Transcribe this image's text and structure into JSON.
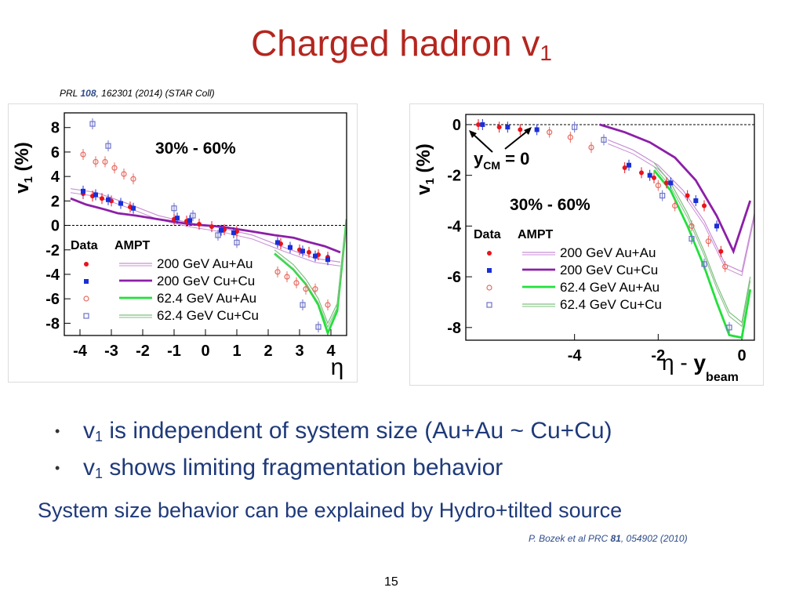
{
  "slide": {
    "title_main": "Charged hadron v",
    "title_sub": "1",
    "ref_top": {
      "pre": "PRL ",
      "vol": "108",
      "post": ", 162301 (2014) (STAR Coll)"
    },
    "bullets": [
      {
        "mark": "•",
        "v": "v",
        "sub": "1",
        "text": " is independent of system size (Au+Au ~ Cu+Cu)"
      },
      {
        "mark": "•",
        "v": "v",
        "sub": "1",
        "text": " shows limiting fragmentation behavior"
      }
    ],
    "system_line": "System size behavior can be explained by Hydro+tilted source",
    "ref_bottom": {
      "pre": "P. Bozek et al PRC ",
      "vol": "81",
      "post": ", 054902 (2010)"
    },
    "page_number": "15"
  },
  "colors": {
    "title": "#b4261f",
    "text": "#1f3a7a",
    "au200": "#e8141c",
    "cu200": "#1a2fd6",
    "au62": "#e86a60",
    "cu62": "#6d72c9",
    "ampt_au200": "#c98fd6",
    "ampt_cu200": "#8c1fa8",
    "ampt_au62": "#22e03a",
    "ampt_cu62": "#7fbf7f"
  },
  "chart_data": [
    {
      "type": "scatter",
      "panel_label": "30% - 60%",
      "xlabel": "η",
      "ylabel": "v1 (%)",
      "xlim": [
        -4.5,
        4.5
      ],
      "ylim": [
        -9,
        9.2
      ],
      "xticks": [
        -4,
        -3,
        -2,
        -1,
        0,
        1,
        2,
        3,
        4
      ],
      "yticks": [
        8,
        6,
        4,
        2,
        0,
        -2,
        -4,
        -6,
        -8
      ],
      "legend_header": [
        "Data",
        "AMPT"
      ],
      "legend": [
        "200 GeV Au+Au",
        "200 GeV Cu+Cu",
        "62.4 GeV Au+Au",
        "62.4 GeV Cu+Cu"
      ],
      "series": [
        {
          "name": "200 GeV Au+Au",
          "kind": "data",
          "marker": "dot",
          "x": [
            -3.9,
            -3.6,
            -3.3,
            -3.0,
            -2.7,
            -2.4,
            -1.0,
            -0.6,
            -0.2,
            0.2,
            0.6,
            1.0,
            2.4,
            2.7,
            3.0,
            3.3,
            3.6,
            3.9
          ],
          "y": [
            2.6,
            2.4,
            2.2,
            2.0,
            1.8,
            1.5,
            0.5,
            0.35,
            0.1,
            -0.1,
            -0.35,
            -0.5,
            -1.5,
            -1.8,
            -2.0,
            -2.2,
            -2.4,
            -2.6
          ]
        },
        {
          "name": "200 GeV Cu+Cu",
          "kind": "data",
          "marker": "square",
          "x": [
            -3.9,
            -3.5,
            -3.1,
            -2.7,
            -2.3,
            -0.9,
            -0.5,
            0.5,
            0.9,
            2.3,
            2.7,
            3.1,
            3.5,
            3.9
          ],
          "y": [
            2.8,
            2.5,
            2.1,
            1.8,
            1.4,
            0.6,
            0.4,
            -0.4,
            -0.6,
            -1.4,
            -1.8,
            -2.1,
            -2.5,
            -2.8
          ]
        },
        {
          "name": "62.4 GeV Au+Au",
          "kind": "data",
          "marker": "circle",
          "x": [
            -3.9,
            -3.5,
            -3.2,
            -2.9,
            -2.6,
            -2.3,
            2.3,
            2.6,
            2.9,
            3.2,
            3.5,
            3.9
          ],
          "y": [
            5.8,
            5.2,
            5.2,
            4.7,
            4.2,
            3.8,
            -3.8,
            -4.2,
            -4.7,
            -5.2,
            -5.2,
            -6.5
          ]
        },
        {
          "name": "62.4 GeV Cu+Cu",
          "kind": "data",
          "marker": "open-square",
          "x": [
            -3.6,
            -3.1,
            -1.0,
            -0.4,
            0.4,
            1.0,
            3.1,
            3.6
          ],
          "y": [
            8.3,
            6.5,
            1.4,
            0.8,
            -0.8,
            -1.4,
            -6.5,
            -8.3
          ]
        },
        {
          "name": "200 GeV Au+Au",
          "kind": "ampt",
          "x": [
            -4.3,
            -3.5,
            -2.5,
            -1.5,
            -0.5,
            0.5,
            1.5,
            2.5,
            3.5,
            4.3
          ],
          "y": [
            3.0,
            2.7,
            1.8,
            0.8,
            0.2,
            -0.2,
            -0.8,
            -1.8,
            -2.7,
            -3.0
          ]
        },
        {
          "name": "200 GeV Cu+Cu",
          "kind": "ampt",
          "x": [
            -4.3,
            -3.8,
            -3.2,
            -2.8,
            -2.2,
            -1.5,
            -0.5,
            0.5,
            1.5,
            2.2,
            2.8,
            3.2,
            3.8,
            4.3
          ],
          "y": [
            2.2,
            1.7,
            1.3,
            1.0,
            0.8,
            0.5,
            0.1,
            -0.1,
            -0.5,
            -0.8,
            -1.0,
            -1.3,
            -1.7,
            -2.2
          ]
        },
        {
          "name": "62.4 GeV Au+Au",
          "kind": "ampt",
          "x": [
            2.2,
            2.8,
            3.2,
            3.6,
            3.9,
            4.2,
            4.5
          ],
          "y": [
            -2.3,
            -3.6,
            -4.8,
            -6.5,
            -8.8,
            -7.0,
            0.5
          ]
        },
        {
          "name": "62.4 GeV Cu+Cu",
          "kind": "ampt",
          "x": [
            2.2,
            2.8,
            3.2,
            3.6,
            3.9,
            4.2,
            4.5
          ],
          "y": [
            -2.0,
            -3.2,
            -4.4,
            -6.0,
            -8.0,
            -6.4,
            0.5
          ]
        }
      ]
    },
    {
      "type": "scatter",
      "panel_label": "30% - 60%",
      "annotation": "y_CM = 0",
      "xlabel": "η - y_beam",
      "ylabel": "v1 (%)",
      "xlim": [
        -6.6,
        0.3
      ],
      "ylim": [
        -8.5,
        0.4
      ],
      "xticks": [
        -4,
        -2,
        0
      ],
      "yticks": [
        0,
        -2,
        -4,
        -6,
        -8
      ],
      "legend_header": [
        "Data",
        "AMPT"
      ],
      "legend": [
        "200 GeV Au+Au",
        "200 GeV Cu+Cu",
        "62.4 GeV Au+Au",
        "62.4 GeV Cu+Cu"
      ],
      "series": [
        {
          "name": "200 GeV Au+Au",
          "kind": "data",
          "marker": "dot",
          "x": [
            -6.3,
            -5.8,
            -5.3,
            -2.8,
            -2.4,
            -2.1,
            -1.8,
            -1.3,
            -0.9,
            -0.5
          ],
          "y": [
            0.0,
            -0.1,
            -0.2,
            -1.7,
            -1.9,
            -2.1,
            -2.3,
            -2.8,
            -3.2,
            -5.0
          ]
        },
        {
          "name": "200 GeV Cu+Cu",
          "kind": "data",
          "marker": "square",
          "x": [
            -6.2,
            -5.6,
            -4.9,
            -2.7,
            -2.2,
            -1.7,
            -1.1,
            -0.6
          ],
          "y": [
            0.0,
            -0.1,
            -0.2,
            -1.6,
            -2.0,
            -2.3,
            -3.0,
            -4.0
          ]
        },
        {
          "name": "62.4 GeV Au+Au",
          "kind": "data",
          "marker": "circle",
          "x": [
            -4.6,
            -4.1,
            -3.6,
            -2.0,
            -1.6,
            -1.2,
            -0.8,
            -0.4
          ],
          "y": [
            -0.3,
            -0.5,
            -0.9,
            -2.4,
            -3.2,
            -4.0,
            -4.6,
            -5.6
          ]
        },
        {
          "name": "62.4 GeV Cu+Cu",
          "kind": "data",
          "marker": "open-square",
          "x": [
            -4.0,
            -3.3,
            -1.9,
            -1.2,
            -0.9,
            -0.3
          ],
          "y": [
            -0.1,
            -0.6,
            -2.8,
            -4.5,
            -5.5,
            -8.0
          ]
        },
        {
          "name": "200 GeV Au+Au",
          "kind": "ampt",
          "x": [
            -3.2,
            -2.6,
            -2.0,
            -1.4,
            -0.9,
            -0.4,
            0.0,
            0.3
          ],
          "y": [
            -0.6,
            -1.0,
            -1.6,
            -2.6,
            -3.8,
            -5.5,
            -5.8,
            -3.5
          ]
        },
        {
          "name": "200 GeV Cu+Cu",
          "kind": "ampt",
          "x": [
            -3.4,
            -2.8,
            -2.2,
            -1.6,
            -1.1,
            -0.6,
            -0.2,
            0.2
          ],
          "y": [
            0.0,
            -0.3,
            -0.7,
            -1.3,
            -2.2,
            -3.6,
            -5.0,
            -3.0
          ]
        },
        {
          "name": "62.4 GeV Au+Au",
          "kind": "ampt",
          "x": [
            -2.1,
            -1.7,
            -1.3,
            -0.9,
            -0.6,
            -0.3,
            0.0,
            0.2
          ],
          "y": [
            -1.8,
            -2.6,
            -4.0,
            -5.6,
            -7.0,
            -8.3,
            -8.4,
            -6.5
          ]
        },
        {
          "name": "62.4 GeV Cu+Cu",
          "kind": "ampt",
          "x": [
            -2.1,
            -1.7,
            -1.3,
            -0.9,
            -0.6,
            -0.3,
            0.0,
            0.2
          ],
          "y": [
            -1.5,
            -2.3,
            -3.5,
            -5.0,
            -6.3,
            -7.4,
            -7.8,
            -6.0
          ]
        }
      ]
    }
  ]
}
